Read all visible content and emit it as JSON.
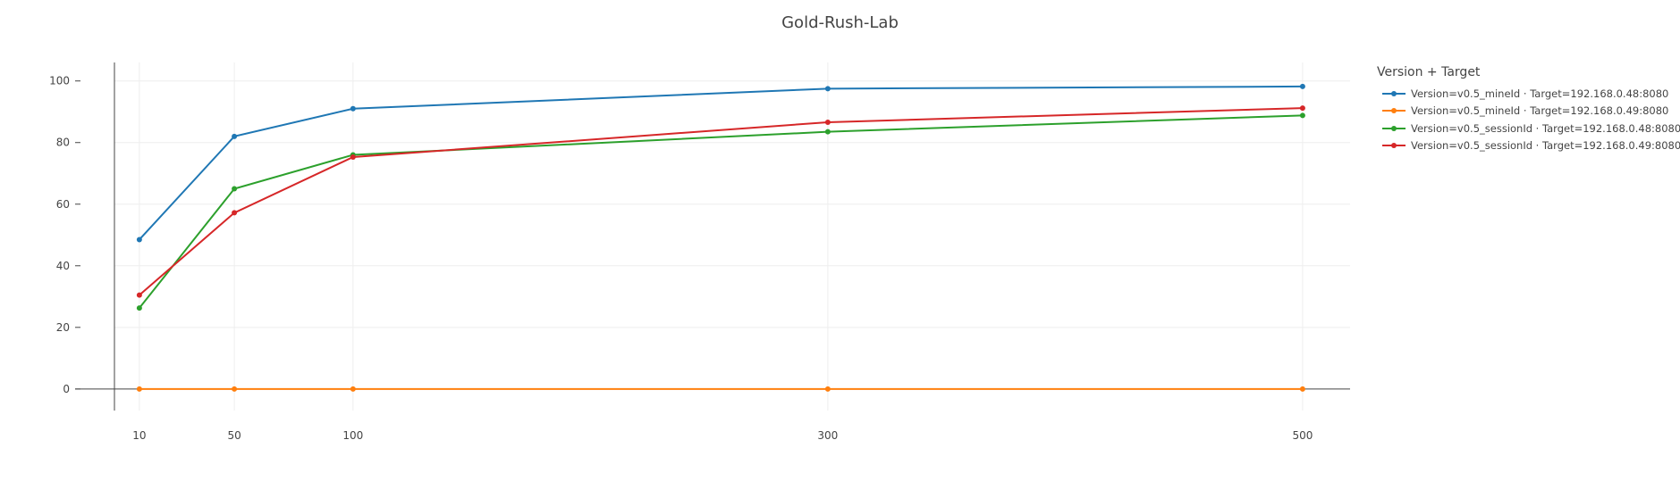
{
  "chart_data": {
    "type": "line",
    "title": "Gold-Rush-Lab",
    "xlabel": "",
    "ylabel": "",
    "x": [
      10,
      50,
      100,
      300,
      500
    ],
    "xlim": [
      -0.5,
      520
    ],
    "ylim": [
      -7,
      106
    ],
    "y_ticks": [
      0,
      20,
      40,
      60,
      80,
      100
    ],
    "grid": true,
    "legend_title": "Version + Target",
    "legend_position": "top-right, outside plot",
    "series": [
      {
        "name": "Version=v0.5_mineId · Target=192.168.0.48:8080",
        "color": "#1f77b4",
        "values": [
          48.5,
          82,
          91,
          97.5,
          98.2
        ]
      },
      {
        "name": "Version=v0.5_mineId · Target=192.168.0.49:8080",
        "color": "#ff7f0e",
        "values": [
          0,
          0,
          0,
          0,
          0
        ]
      },
      {
        "name": "Version=v0.5_sessionId · Target=192.168.0.48:8080",
        "color": "#2ca02c",
        "values": [
          26.3,
          65,
          76,
          83.5,
          88.8
        ]
      },
      {
        "name": "Version=v0.5_sessionId · Target=192.168.0.49:8080",
        "color": "#d62728",
        "values": [
          30.5,
          57.2,
          75.3,
          86.6,
          91.2
        ]
      }
    ]
  }
}
